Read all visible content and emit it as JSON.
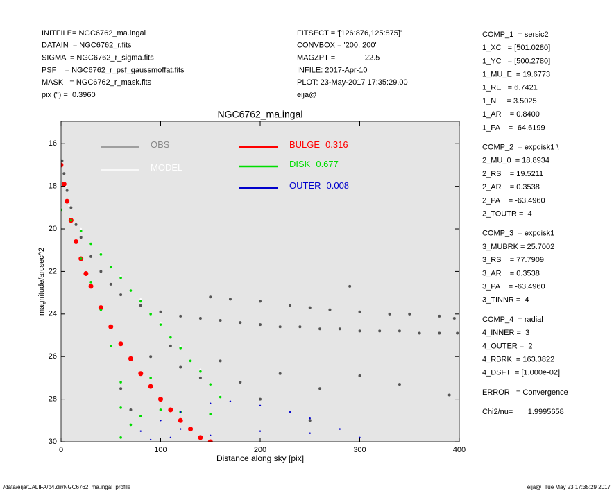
{
  "header_left": [
    "INITFILE= NGC6762_ma.ingal",
    "DATAIN  = NGC6762_r.fits",
    "SIGMA  = NGC6762_r_sigma.fits",
    "PSF    = NGC6762_r_psf_gaussmoffat.fits",
    "MASK   = NGC6762_r_mask.fits",
    "pix (\") =  0.3960"
  ],
  "header_mid": [
    "FITSECT = '[126:876,125:875]'",
    "CONVBOX = '200, 200'",
    "MAGZPT =              22.5",
    "INFILE: 2017-Apr-10",
    "PLOT: 23-May-2017 17:35:29.00",
    "eija@"
  ],
  "params": [
    [
      "COMP_1  = sersic2",
      "1_XC   = [501.0280]",
      "1_YC   = [500.2780]",
      "1_MU_E  = 19.6773",
      "1_RE   = 6.7421",
      "1_N     = 3.5025",
      "1_AR    = 0.8400",
      "1_PA    = -64.6199"
    ],
    [
      "COMP_2  = expdisk1 \\",
      "2_MU_0  = 18.8934",
      "2_RS    = 19.5211",
      "2_AR    = 0.3538",
      "2_PA    = -63.4960",
      "2_TOUTR =  4"
    ],
    [
      "COMP_3  = expdisk1",
      "3_MUBRK = 25.7002",
      "3_RS    = 77.7909",
      "3_AR    = 0.3538",
      "3_PA    = -63.4960",
      "3_TINNR =  4"
    ],
    [
      "COMP_4  = radial",
      "4_INNER =  3",
      "4_OUTER =  2",
      "4_RBRK  = 163.3822",
      "4_DSFT  = [1.000e-02]"
    ],
    [
      "ERROR   = Convergence"
    ],
    [
      "Chi2/nu=       1.9995658"
    ]
  ],
  "footer_left": "/data/eija/CALIFA/p4.dir/NGC6762_ma.ingal_profile",
  "footer_right": "eija@  Tue May 23 17:35:29 2017",
  "chart_data": {
    "type": "scatter",
    "title": "NGC6762_ma.ingal",
    "xlabel": "Distance along sky [pix]",
    "ylabel": "magnitude/arcsec^2",
    "xlim": [
      0,
      400
    ],
    "ylim": [
      30,
      14.95
    ],
    "xticks": [
      0,
      100,
      200,
      300,
      400
    ],
    "yticks": [
      16,
      18,
      20,
      22,
      24,
      26,
      28,
      30
    ],
    "series": [
      {
        "name": "OBS",
        "color": "#555555",
        "legend_color": "#888888",
        "x": [
          1,
          3,
          6,
          10,
          15,
          20,
          30,
          40,
          50,
          60,
          80,
          100,
          120,
          140,
          160,
          180,
          200,
          220,
          240,
          260,
          280,
          300,
          320,
          340,
          360,
          380,
          398,
          150,
          170,
          200,
          230,
          250,
          270,
          300,
          330,
          350,
          380,
          395,
          120,
          140,
          180,
          220,
          260,
          300,
          340,
          390,
          60,
          70,
          90,
          110,
          290,
          250,
          200,
          160
        ],
        "values": [
          16.8,
          17.4,
          18.2,
          19.0,
          19.8,
          20.4,
          21.3,
          22.0,
          22.6,
          23.1,
          23.6,
          23.9,
          24.1,
          24.2,
          24.3,
          24.4,
          24.5,
          24.6,
          24.6,
          24.7,
          24.7,
          24.8,
          24.8,
          24.8,
          24.9,
          24.9,
          24.9,
          23.2,
          23.3,
          23.4,
          23.6,
          23.7,
          23.8,
          23.9,
          24.0,
          24.0,
          24.1,
          24.2,
          26.5,
          27.0,
          27.2,
          26.8,
          27.5,
          26.9,
          27.3,
          27.8,
          27.5,
          28.5,
          26.0,
          25.5,
          22.7,
          29.0,
          28.0,
          26.2
        ]
      },
      {
        "name": "MODEL",
        "color": "#ffffff",
        "legend_color": "#ffffff",
        "x": [
          0,
          10,
          20,
          40,
          60,
          80,
          100,
          120,
          140,
          160,
          2,
          5,
          8
        ],
        "values": [
          19.0,
          19.5,
          20.0,
          21.1,
          22.2,
          23.3,
          24.4,
          25.5,
          26.6,
          27.8,
          17.0,
          18.0,
          18.9
        ]
      },
      {
        "name": "BULGE",
        "fraction": 0.316,
        "color": "#ff0000",
        "legend_color": "#ff0000",
        "x": [
          0,
          3,
          6,
          10,
          15,
          20,
          25,
          30,
          40,
          50,
          60,
          70,
          80,
          90,
          100,
          110,
          120,
          130,
          140,
          150
        ],
        "values": [
          17.0,
          17.9,
          18.7,
          19.6,
          20.6,
          21.4,
          22.1,
          22.7,
          23.7,
          24.6,
          25.4,
          26.1,
          26.8,
          27.4,
          28.0,
          28.5,
          29.0,
          29.4,
          29.8,
          30.0
        ]
      },
      {
        "name": "DISK",
        "fraction": 0.677,
        "color": "#00dd00",
        "legend_color": "#00dd00",
        "x": [
          0,
          10,
          20,
          30,
          40,
          50,
          60,
          70,
          80,
          90,
          100,
          110,
          120,
          130,
          140,
          150,
          160,
          20,
          30,
          40,
          50,
          60,
          60,
          70,
          80,
          100,
          120,
          150,
          60,
          90
        ],
        "values": [
          19.1,
          19.6,
          20.1,
          20.7,
          21.2,
          21.8,
          22.3,
          22.9,
          23.4,
          24.0,
          24.5,
          25.1,
          25.6,
          26.2,
          26.7,
          27.3,
          27.9,
          21.4,
          22.5,
          23.8,
          25.5,
          27.2,
          29.8,
          29.2,
          28.8,
          28.5,
          28.6,
          28.7,
          28.4,
          27.0
        ]
      },
      {
        "name": "OUTER",
        "fraction": 0.008,
        "color": "#0000cc",
        "legend_color": "#0000cc",
        "x": [
          80,
          100,
          120,
          150,
          170,
          200,
          230,
          250,
          280,
          300,
          120,
          150,
          200,
          250,
          90,
          110
        ],
        "values": [
          29.5,
          29.0,
          28.6,
          28.2,
          28.1,
          28.3,
          28.6,
          28.9,
          29.4,
          29.8,
          29.4,
          29.7,
          29.5,
          29.6,
          29.9,
          29.8
        ]
      }
    ]
  }
}
